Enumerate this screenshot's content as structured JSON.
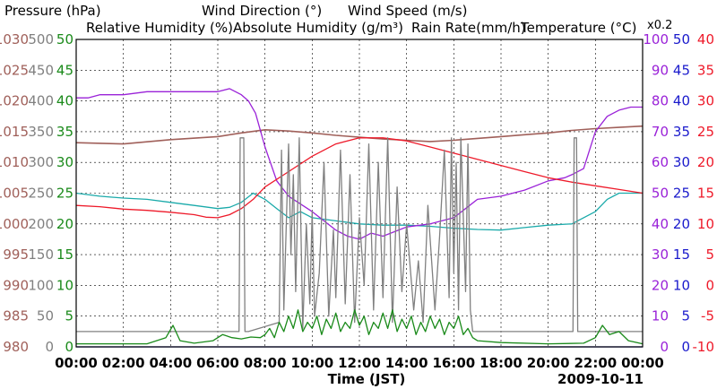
{
  "chart_data": {
    "type": "line",
    "date": "2009-10-11",
    "xlabel": "Time (JST)",
    "x_ticks": [
      "00:00",
      "02:00",
      "04:00",
      "06:00",
      "08:00",
      "10:00",
      "12:00",
      "14:00",
      "16:00",
      "18:00",
      "20:00",
      "22:00",
      "00:00"
    ],
    "xlim_hours": [
      0,
      24
    ],
    "x_step_hours": 2,
    "factor_note": "x0.2",
    "axes": {
      "pressure": {
        "label": "Pressure (hPa)",
        "color": "#a0605a",
        "ticks": [
          "1030",
          "1025",
          "1020",
          "1015",
          "1010",
          "1005",
          "1000",
          "995",
          "990",
          "985",
          "980"
        ],
        "range": [
          980,
          1030
        ]
      },
      "wind_dir": {
        "label": "Wind Direction (°)",
        "color": "#808080",
        "ticks": [
          "500",
          "450",
          "400",
          "350",
          "300",
          "250",
          "200",
          "150",
          "100",
          "50",
          "0"
        ],
        "range": [
          0,
          500
        ]
      },
      "wind_speed": {
        "label": "Wind Speed (m/s)",
        "color": "#1a8a1a",
        "ticks": [
          "50",
          "45",
          "40",
          "35",
          "30",
          "25",
          "20",
          "15",
          "10",
          "5",
          "0"
        ],
        "range": [
          0,
          50
        ]
      },
      "humidity": {
        "label": "Relative Humidity (%)",
        "color": "#9a22d8",
        "ticks": [
          "100",
          "90",
          "80",
          "70",
          "60",
          "50",
          "40",
          "30",
          "20",
          "10",
          "0"
        ],
        "range": [
          0,
          100
        ]
      },
      "abs_humidity": {
        "label": "Absolute Humidity (g/m³)",
        "color": "#1aaaaa",
        "range": [
          0,
          50
        ]
      },
      "rain": {
        "label": "Rain Rate(mm/h)",
        "color": "#1a1acc",
        "ticks": [
          "50",
          "45",
          "40",
          "35",
          "30",
          "25",
          "20",
          "15",
          "10",
          "5",
          "0"
        ],
        "range": [
          0,
          50
        ]
      },
      "temperature": {
        "label": "Temperature (°C)",
        "color": "#ee1a2a",
        "ticks": [
          "40",
          "35",
          "30",
          "25",
          "20",
          "15",
          "10",
          "5",
          "0",
          "-5",
          "-10"
        ],
        "range": [
          -10,
          40
        ]
      }
    },
    "series": [
      {
        "name": "Pressure",
        "axis": "pressure",
        "color": "#a0605a",
        "x": [
          0,
          2,
          4,
          6,
          7,
          8,
          9,
          10,
          11,
          12,
          13,
          14,
          15,
          16,
          17,
          18,
          19,
          20,
          21,
          22,
          23,
          24
        ],
        "y": [
          1013.2,
          1013.0,
          1013.7,
          1014.2,
          1014.8,
          1015.3,
          1015.1,
          1014.8,
          1014.4,
          1014.1,
          1013.8,
          1013.6,
          1013.4,
          1013.6,
          1013.9,
          1014.2,
          1014.5,
          1014.8,
          1015.2,
          1015.5,
          1015.7,
          1015.9
        ]
      },
      {
        "name": "Relative Humidity",
        "axis": "humidity",
        "color": "#9a22d8",
        "x": [
          0,
          0.5,
          1,
          2,
          3,
          4,
          5,
          6,
          6.5,
          7,
          7.3,
          7.6,
          8,
          8.5,
          9,
          10,
          11,
          11.5,
          12,
          12.5,
          13,
          14,
          15,
          16,
          16.5,
          17,
          18,
          19,
          20,
          20.7,
          21,
          21.5,
          22,
          22.5,
          23,
          23.5,
          24
        ],
        "y": [
          81,
          81,
          82,
          82,
          83,
          83,
          83,
          83,
          84,
          82,
          80,
          76,
          65,
          54,
          49,
          44,
          38,
          36,
          35,
          37,
          36,
          39,
          40,
          42,
          45,
          48,
          49,
          51,
          54,
          55,
          56,
          58,
          70,
          75,
          77,
          78,
          78
        ]
      },
      {
        "name": "Absolute Humidity",
        "axis": "abs_humidity",
        "color": "#1aaaaa",
        "x": [
          0,
          1,
          2,
          3,
          4,
          5,
          6,
          6.5,
          7,
          7.5,
          8,
          8.5,
          9,
          9.5,
          10,
          11,
          12,
          13,
          14,
          15,
          16,
          17,
          18,
          19,
          20,
          21,
          21.5,
          22,
          22.5,
          23,
          23.5,
          24
        ],
        "y": [
          25,
          24.5,
          24.2,
          24,
          23.5,
          23,
          22.5,
          22.7,
          23.5,
          25,
          24,
          22.5,
          21,
          22,
          21,
          20.5,
          20,
          19.8,
          19.8,
          19.6,
          19.3,
          19.1,
          19,
          19.4,
          19.8,
          20,
          21,
          22,
          24,
          25,
          25,
          25
        ]
      },
      {
        "name": "Temperature",
        "axis": "temperature",
        "color": "#ee1a2a",
        "x": [
          0,
          1,
          2,
          3,
          4,
          5,
          5.5,
          6,
          6.5,
          7,
          7.5,
          8,
          9,
          10,
          11,
          12,
          13,
          14,
          15,
          16,
          17,
          18,
          19,
          20,
          21,
          22,
          23,
          24
        ],
        "y": [
          13,
          12.8,
          12.4,
          12.2,
          11.9,
          11.5,
          11.1,
          11.0,
          11.5,
          12.5,
          14,
          16,
          18.5,
          21,
          23,
          24,
          24,
          23.5,
          22.5,
          21.5,
          20.5,
          19.5,
          18.5,
          17.5,
          16.8,
          16.2,
          15.6,
          15
        ]
      },
      {
        "name": "Wind Direction",
        "axis": "wind_dir",
        "color": "#808080",
        "x": [
          0,
          6.9,
          6.95,
          7.1,
          7.15,
          7.3,
          8.6,
          8.7,
          8.8,
          9.0,
          9.1,
          9.2,
          9.3,
          9.45,
          9.6,
          9.75,
          9.9,
          10.0,
          10.1,
          10.3,
          10.5,
          10.7,
          10.9,
          11.0,
          11.2,
          11.4,
          11.6,
          11.8,
          12.0,
          12.2,
          12.4,
          12.6,
          12.8,
          13.0,
          13.2,
          13.4,
          13.6,
          13.8,
          14.0,
          14.3,
          14.5,
          14.7,
          14.9,
          15.2,
          15.4,
          15.6,
          15.8,
          15.9,
          16.0,
          16.1,
          16.2,
          16.3,
          16.5,
          16.6,
          16.7,
          16.8,
          17.0,
          21.05,
          21.1,
          21.2,
          21.25,
          21.3,
          22.0,
          22.4,
          24
        ],
        "y": [
          25,
          25,
          340,
          340,
          25,
          25,
          40,
          320,
          60,
          330,
          150,
          280,
          90,
          340,
          30,
          200,
          70,
          220,
          50,
          120,
          300,
          50,
          190,
          80,
          320,
          70,
          280,
          40,
          210,
          100,
          330,
          60,
          300,
          80,
          340,
          40,
          260,
          90,
          200,
          60,
          140,
          40,
          230,
          60,
          180,
          320,
          80,
          340,
          120,
          300,
          60,
          340,
          90,
          330,
          60,
          25,
          25,
          25,
          340,
          340,
          25,
          25,
          25,
          25,
          25
        ]
      },
      {
        "name": "Wind Speed",
        "axis": "wind_speed",
        "color": "#1a8a1a",
        "x": [
          0,
          3,
          3.8,
          4.1,
          4.4,
          5,
          5.8,
          6.2,
          6.6,
          7,
          7.4,
          7.8,
          8,
          8.2,
          8.4,
          8.6,
          8.8,
          9,
          9.2,
          9.4,
          9.6,
          9.8,
          10,
          10.2,
          10.4,
          10.6,
          10.8,
          11,
          11.2,
          11.4,
          11.6,
          11.8,
          12,
          12.2,
          12.4,
          12.6,
          12.8,
          13,
          13.2,
          13.4,
          13.6,
          13.8,
          14,
          14.2,
          14.4,
          14.6,
          14.8,
          15,
          15.2,
          15.4,
          15.6,
          15.8,
          16,
          16.2,
          16.4,
          16.6,
          16.8,
          17,
          18,
          20,
          21.5,
          22,
          22.3,
          22.6,
          23,
          23.4,
          24
        ],
        "y": [
          0.5,
          0.5,
          1.5,
          3.5,
          1,
          0.6,
          1,
          2,
          1.5,
          1.3,
          1.6,
          1.5,
          2,
          3,
          1.5,
          4,
          2.5,
          5,
          3,
          6,
          2.5,
          4,
          3,
          5,
          2,
          4.5,
          3,
          5.5,
          2.5,
          4,
          3,
          6,
          3.5,
          5,
          2,
          4,
          3,
          5.5,
          3,
          6,
          2.5,
          4.5,
          3,
          5,
          2,
          4,
          2.5,
          5,
          3,
          4.5,
          2,
          4,
          3,
          5,
          2,
          3,
          1.5,
          1,
          0.7,
          0.5,
          0.6,
          1.5,
          3.5,
          2,
          2.5,
          1,
          0.5
        ]
      },
      {
        "name": "Rain Rate",
        "axis": "rain",
        "color": "#1a1acc",
        "x": [
          0,
          24
        ],
        "y": [
          0,
          0
        ]
      }
    ]
  }
}
